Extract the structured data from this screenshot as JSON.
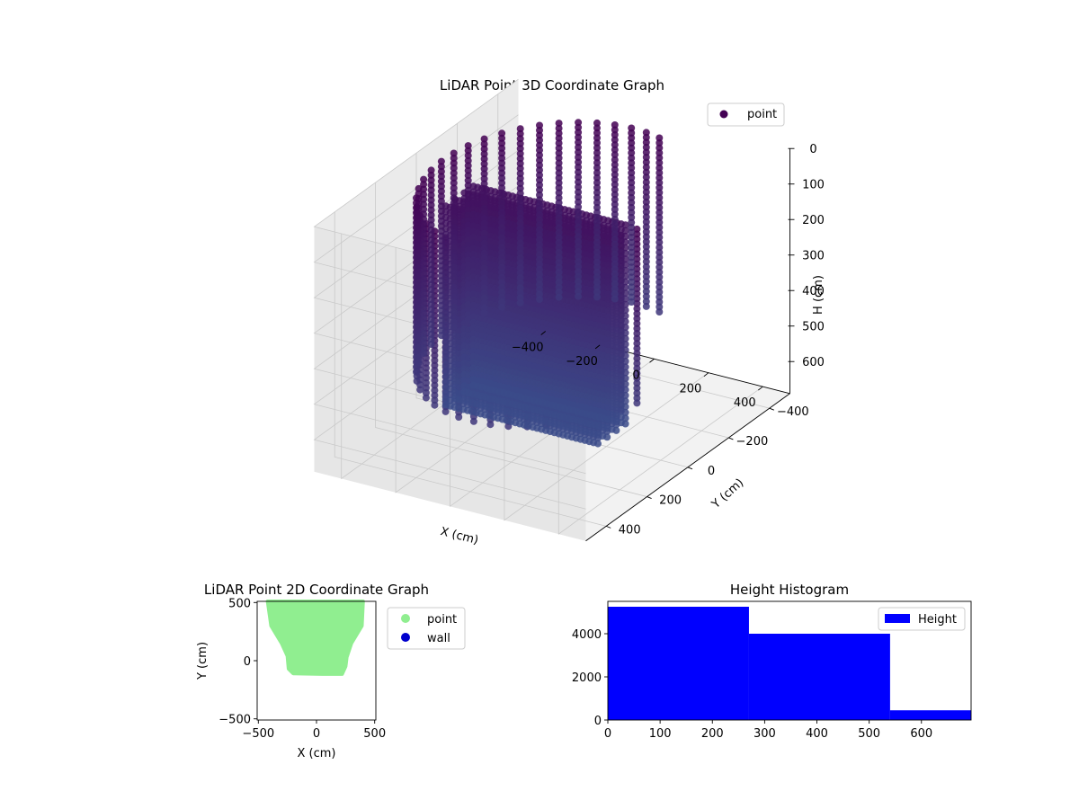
{
  "chart_data": [
    {
      "type": "scatter",
      "subtype": "3d",
      "title": "LiDAR Point 3D Coordinate Graph",
      "xlabel": "X (cm)",
      "ylabel": "Y (cm)",
      "zlabel": "H (cm)",
      "xlim": [
        -500,
        500
      ],
      "ylim": [
        -500,
        500
      ],
      "zlim": [
        0,
        690
      ],
      "z_inverted": true,
      "x_ticks": [
        "−400",
        "−200",
        "0",
        "200",
        "400"
      ],
      "y_ticks": [
        "−400",
        "−200",
        "0",
        "200",
        "400"
      ],
      "z_ticks": [
        "0",
        "100",
        "200",
        "300",
        "400",
        "500",
        "600"
      ],
      "legend": {
        "position": "top-right",
        "entries": [
          "point"
        ]
      },
      "grid": true,
      "colormap": "viridis",
      "colors": {
        "marker_top": "#440154",
        "marker_bottom": "#3b4c8a",
        "legend_marker": "#440154"
      },
      "shape": {
        "wall_ring": {
          "radius_cm": 400,
          "top_h_cm": 0,
          "bottom_h_cm": 500,
          "columns": 34
        },
        "front_mass": {
          "x_range_cm": [
            -380,
            180
          ],
          "y_range_cm": [
            -120,
            20
          ],
          "h_range_cm": [
            120,
            690
          ]
        }
      }
    },
    {
      "type": "scatter",
      "title": "LiDAR Point 2D Coordinate Graph",
      "xlabel": "X (cm)",
      "ylabel": "Y (cm)",
      "xlim": [
        -510,
        510
      ],
      "ylim": [
        -510,
        510
      ],
      "x_ticks": [
        "−500",
        "0",
        "500"
      ],
      "y_ticks": [
        "500",
        "0",
        "−500"
      ],
      "series": [
        {
          "name": "point",
          "color": "#90ee90"
        },
        {
          "name": "wall",
          "color": "#0000cd"
        }
      ],
      "legend": {
        "position": "outside-right"
      },
      "grid": false
    },
    {
      "type": "bar",
      "subtype": "histogram",
      "title": "Height Histogram",
      "xlim": [
        0,
        695
      ],
      "ylim": [
        0,
        5500
      ],
      "x_ticks": [
        "0",
        "100",
        "200",
        "300",
        "400",
        "500",
        "600"
      ],
      "y_ticks": [
        "0",
        "2000",
        "4000"
      ],
      "bins": [
        {
          "start": 0,
          "end": 270,
          "count": 5250
        },
        {
          "start": 270,
          "end": 540,
          "count": 4000
        },
        {
          "start": 540,
          "end": 695,
          "count": 450
        }
      ],
      "series": [
        {
          "name": "Height",
          "color": "#0000ff"
        }
      ],
      "legend": {
        "position": "top-right"
      },
      "grid": false
    }
  ]
}
